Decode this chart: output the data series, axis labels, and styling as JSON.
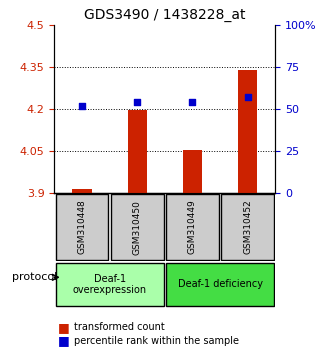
{
  "title": "GDS3490 / 1438228_at",
  "samples": [
    "GSM310448",
    "GSM310450",
    "GSM310449",
    "GSM310452"
  ],
  "transformed_counts": [
    3.916,
    4.198,
    4.053,
    4.34
  ],
  "percentile_ranks": [
    52,
    54,
    54,
    57
  ],
  "ylim_left": [
    3.9,
    4.5
  ],
  "ylim_right": [
    0,
    100
  ],
  "yticks_left": [
    3.9,
    4.05,
    4.2,
    4.35,
    4.5
  ],
  "yticks_right": [
    0,
    25,
    50,
    75,
    100
  ],
  "ytick_labels_left": [
    "3.9",
    "4.05",
    "4.2",
    "4.35",
    "4.5"
  ],
  "ytick_labels_right": [
    "0",
    "25",
    "50",
    "75",
    "100%"
  ],
  "bar_color": "#cc2200",
  "dot_color": "#0000cc",
  "bar_width": 0.35,
  "protocol_groups": [
    {
      "label": "Deaf-1\noverexpression",
      "samples": [
        "GSM310448",
        "GSM310450"
      ],
      "color": "#aaffaa"
    },
    {
      "label": "Deaf-1 deficiency",
      "samples": [
        "GSM310449",
        "GSM310452"
      ],
      "color": "#44dd44"
    }
  ],
  "legend_bar_label": "transformed count",
  "legend_dot_label": "percentile rank within the sample",
  "protocol_text": "protocol",
  "bg_color": "#ffffff",
  "tick_label_color_left": "#cc2200",
  "tick_label_color_right": "#0000cc",
  "grid_color": "#000000",
  "sample_box_color": "#cccccc"
}
